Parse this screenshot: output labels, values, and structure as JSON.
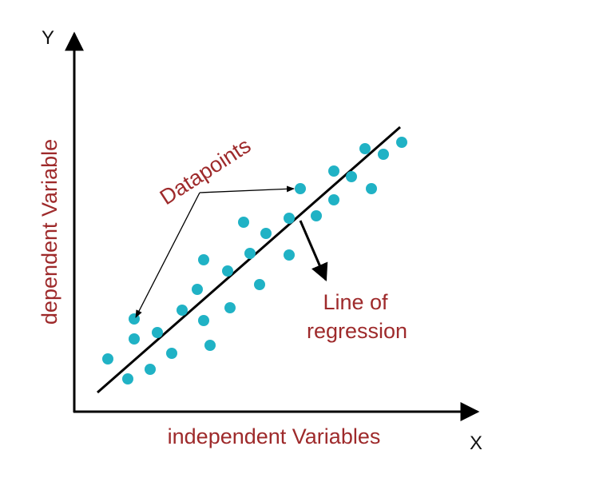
{
  "axes": {
    "y": "Y",
    "x": "X"
  },
  "axis_titles": {
    "y": "dependent Variable",
    "x": "independent Variables"
  },
  "callouts": {
    "datapoints": "Datapoints",
    "regression": [
      "Line of",
      "regression"
    ]
  }
}
